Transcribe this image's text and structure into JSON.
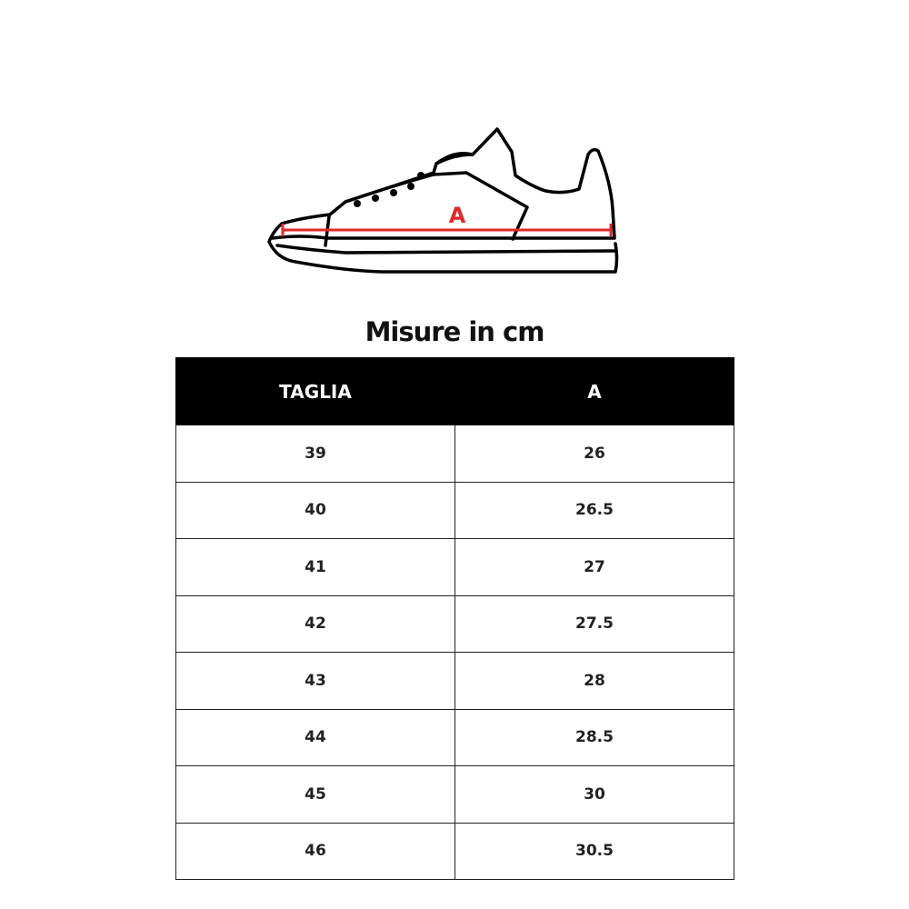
{
  "diagram": {
    "measure_label": "A",
    "accent_color": "#e02a2a"
  },
  "title": "Misure in cm",
  "table": {
    "headers": [
      "TAGLIA",
      "A"
    ],
    "rows": [
      [
        "39",
        "26"
      ],
      [
        "40",
        "26.5"
      ],
      [
        "41",
        "27"
      ],
      [
        "42",
        "27.5"
      ],
      [
        "43",
        "28"
      ],
      [
        "44",
        "28.5"
      ],
      [
        "45",
        "30"
      ],
      [
        "46",
        "30.5"
      ]
    ]
  }
}
